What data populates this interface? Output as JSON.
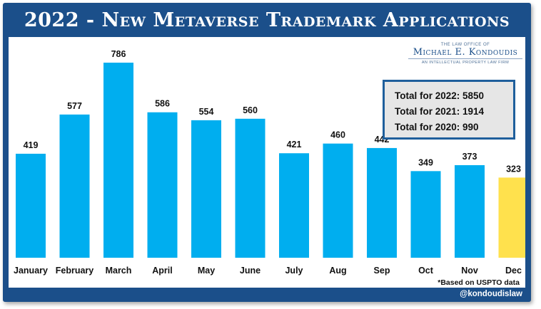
{
  "header": {
    "title": "2022 - New Metaverse Trademark Applications"
  },
  "logo": {
    "top_line": "THE LAW OFFICE OF",
    "name": "Michael E. Kondoudis",
    "subtitle": "AN INTELLECTUAL PROPERTY LAW FIRM"
  },
  "totals": {
    "line_2022": "Total for 2022: 5850",
    "line_2021": "Total for 2021: 1914",
    "line_2020": "Total for 2020: 990"
  },
  "footnote": "*Based on USPTO data",
  "social_handle": "@kondoudislaw",
  "colors": {
    "frame": "#1b4f8a",
    "bar": "#00aeef",
    "highlight_bar": "#ffe14d"
  },
  "chart_data": {
    "type": "bar",
    "title": "2022 - New Metaverse Trademark Applications",
    "xlabel": "",
    "ylabel": "",
    "categories": [
      "January",
      "February",
      "March",
      "April",
      "May",
      "June",
      "July",
      "Aug",
      "Sep",
      "Oct",
      "Nov",
      "Dec"
    ],
    "values": [
      419,
      577,
      786,
      586,
      554,
      560,
      421,
      460,
      442,
      349,
      373,
      323
    ],
    "highlight_category": "Dec",
    "ylim": [
      0,
      786
    ],
    "grid": false,
    "legend": "none"
  }
}
